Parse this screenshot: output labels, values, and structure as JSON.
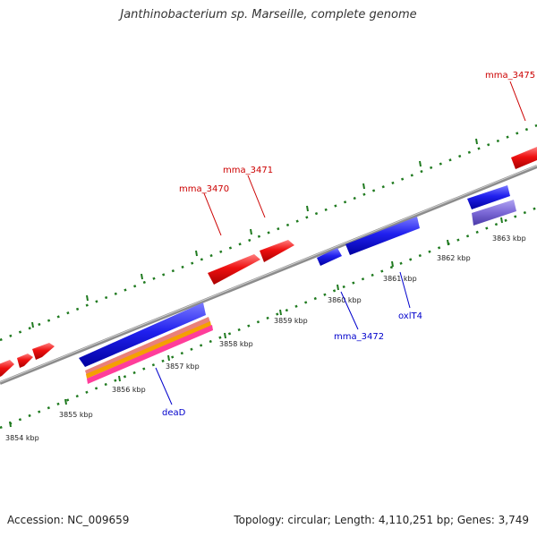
{
  "title": "Janthinobacterium sp. Marseille, complete genome",
  "footer": {
    "accession": "Accession: NC_009659",
    "topology": "Topology: circular; Length: 4,110,251 bp; Genes: 3,749"
  },
  "colors": {
    "forward_gene": "#e80000",
    "reverse_gene": "#1a1ae6",
    "reverse_label": "#0000cc",
    "forward_label": "#cc0000",
    "tick": "#1f7a1f",
    "backbone": "#8c8c8c",
    "pseudo_gene": "#7b68d6",
    "feature_orange": "#f5a000",
    "feature_pink": "#ff3d9a",
    "feature_salmon": "#e9807a"
  },
  "tick_labels": [
    "3854 kbp",
    "3855 kbp",
    "3856 kbp",
    "3857 kbp",
    "3858 kbp",
    "3859 kbp",
    "3860 kbp",
    "3861 kbp",
    "3862 kbp",
    "3863 kbp"
  ],
  "gene_labels": [
    {
      "text": "mma_3475",
      "strand": "forward"
    },
    {
      "text": "mma_3471",
      "strand": "forward"
    },
    {
      "text": "mma_3470",
      "strand": "forward"
    },
    {
      "text": "oxlT4",
      "strand": "reverse"
    },
    {
      "text": "mma_3472",
      "strand": "reverse"
    },
    {
      "text": "deaD",
      "strand": "reverse"
    }
  ]
}
